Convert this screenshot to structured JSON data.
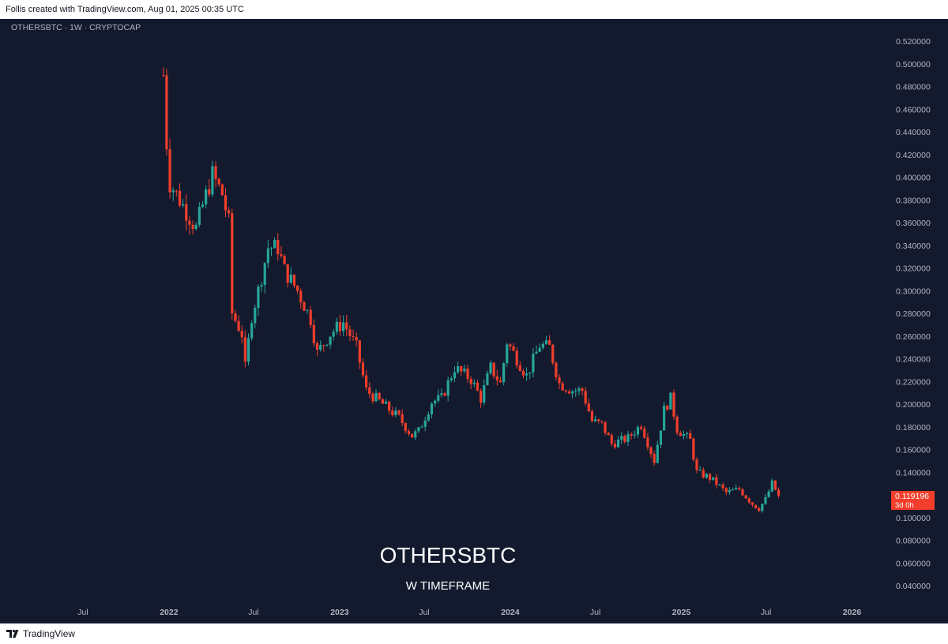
{
  "attribution": "Follis created with TradingView.com, Aug 01, 2025 00:35 UTC",
  "symbol_header": "OTHERSBTC · 1W · CRYPTOCAP",
  "watermark": {
    "title": "OTHERSBTC",
    "subtitle": "W TIMEFRAME"
  },
  "footer": {
    "logo_text": "TradingView"
  },
  "price_badge": {
    "price": "0.119196",
    "countdown": "3d 0h"
  },
  "colors": {
    "up": "#26a69a",
    "down": "#f23e2b",
    "background": "#141a2e",
    "text": "#b2b5be"
  },
  "chart_data": {
    "type": "candlestick",
    "symbol": "OTHERSBTC",
    "timeframe": "1W",
    "y_ticks": [
      "0.520000",
      "0.500000",
      "0.480000",
      "0.460000",
      "0.440000",
      "0.420000",
      "0.400000",
      "0.380000",
      "0.360000",
      "0.340000",
      "0.320000",
      "0.300000",
      "0.280000",
      "0.260000",
      "0.240000",
      "0.220000",
      "0.200000",
      "0.180000",
      "0.160000",
      "0.140000",
      "0.120000",
      "0.100000",
      "0.080000",
      "0.060000",
      "0.040000"
    ],
    "x_ticks": [
      "Jul",
      "2022",
      "Jul",
      "2023",
      "Jul",
      "2024",
      "Jul",
      "2025",
      "Jul",
      "2026"
    ],
    "x_range": [
      "2021-05-01",
      "2026-03-01"
    ],
    "ylim": [
      0.03,
      0.53
    ],
    "anchors": [
      [
        "2021-12-20",
        0.49
      ],
      [
        "2021-12-27",
        0.43
      ],
      [
        "2022-01-03",
        0.395
      ],
      [
        "2022-01-31",
        0.375
      ],
      [
        "2022-02-28",
        0.355
      ],
      [
        "2022-03-14",
        0.375
      ],
      [
        "2022-04-04",
        0.402
      ],
      [
        "2022-04-25",
        0.385
      ],
      [
        "2022-05-09",
        0.36
      ],
      [
        "2022-05-16",
        0.28
      ],
      [
        "2022-06-06",
        0.262
      ],
      [
        "2022-06-13",
        0.232
      ],
      [
        "2022-06-27",
        0.278
      ],
      [
        "2022-07-11",
        0.3
      ],
      [
        "2022-08-01",
        0.338
      ],
      [
        "2022-08-22",
        0.338
      ],
      [
        "2022-09-05",
        0.318
      ],
      [
        "2022-10-03",
        0.3
      ],
      [
        "2022-10-31",
        0.275
      ],
      [
        "2022-11-14",
        0.245
      ],
      [
        "2022-12-12",
        0.262
      ],
      [
        "2023-01-09",
        0.272
      ],
      [
        "2023-02-06",
        0.25
      ],
      [
        "2023-02-27",
        0.212
      ],
      [
        "2023-04-03",
        0.2
      ],
      [
        "2023-05-08",
        0.188
      ],
      [
        "2023-06-05",
        0.172
      ],
      [
        "2023-06-19",
        0.176
      ],
      [
        "2023-07-17",
        0.202
      ],
      [
        "2023-08-07",
        0.205
      ],
      [
        "2023-09-04",
        0.232
      ],
      [
        "2023-10-09",
        0.222
      ],
      [
        "2023-10-30",
        0.205
      ],
      [
        "2023-11-20",
        0.232
      ],
      [
        "2023-12-11",
        0.218
      ],
      [
        "2023-12-25",
        0.255
      ],
      [
        "2024-01-08",
        0.245
      ],
      [
        "2024-02-05",
        0.225
      ],
      [
        "2024-03-04",
        0.252
      ],
      [
        "2024-03-25",
        0.25
      ],
      [
        "2024-04-15",
        0.218
      ],
      [
        "2024-05-13",
        0.212
      ],
      [
        "2024-06-03",
        0.212
      ],
      [
        "2024-06-24",
        0.185
      ],
      [
        "2024-07-15",
        0.182
      ],
      [
        "2024-08-05",
        0.165
      ],
      [
        "2024-09-09",
        0.17
      ],
      [
        "2024-10-07",
        0.182
      ],
      [
        "2024-11-04",
        0.15
      ],
      [
        "2024-11-25",
        0.195
      ],
      [
        "2024-12-09",
        0.205
      ],
      [
        "2024-12-23",
        0.178
      ],
      [
        "2025-01-20",
        0.168
      ],
      [
        "2025-02-03",
        0.14
      ],
      [
        "2025-03-03",
        0.135
      ],
      [
        "2025-03-17",
        0.13
      ],
      [
        "2025-04-07",
        0.122
      ],
      [
        "2025-05-05",
        0.125
      ],
      [
        "2025-06-02",
        0.112
      ],
      [
        "2025-06-16",
        0.108
      ],
      [
        "2025-06-30",
        0.116
      ],
      [
        "2025-07-14",
        0.13
      ],
      [
        "2025-07-28",
        0.119196
      ]
    ]
  }
}
